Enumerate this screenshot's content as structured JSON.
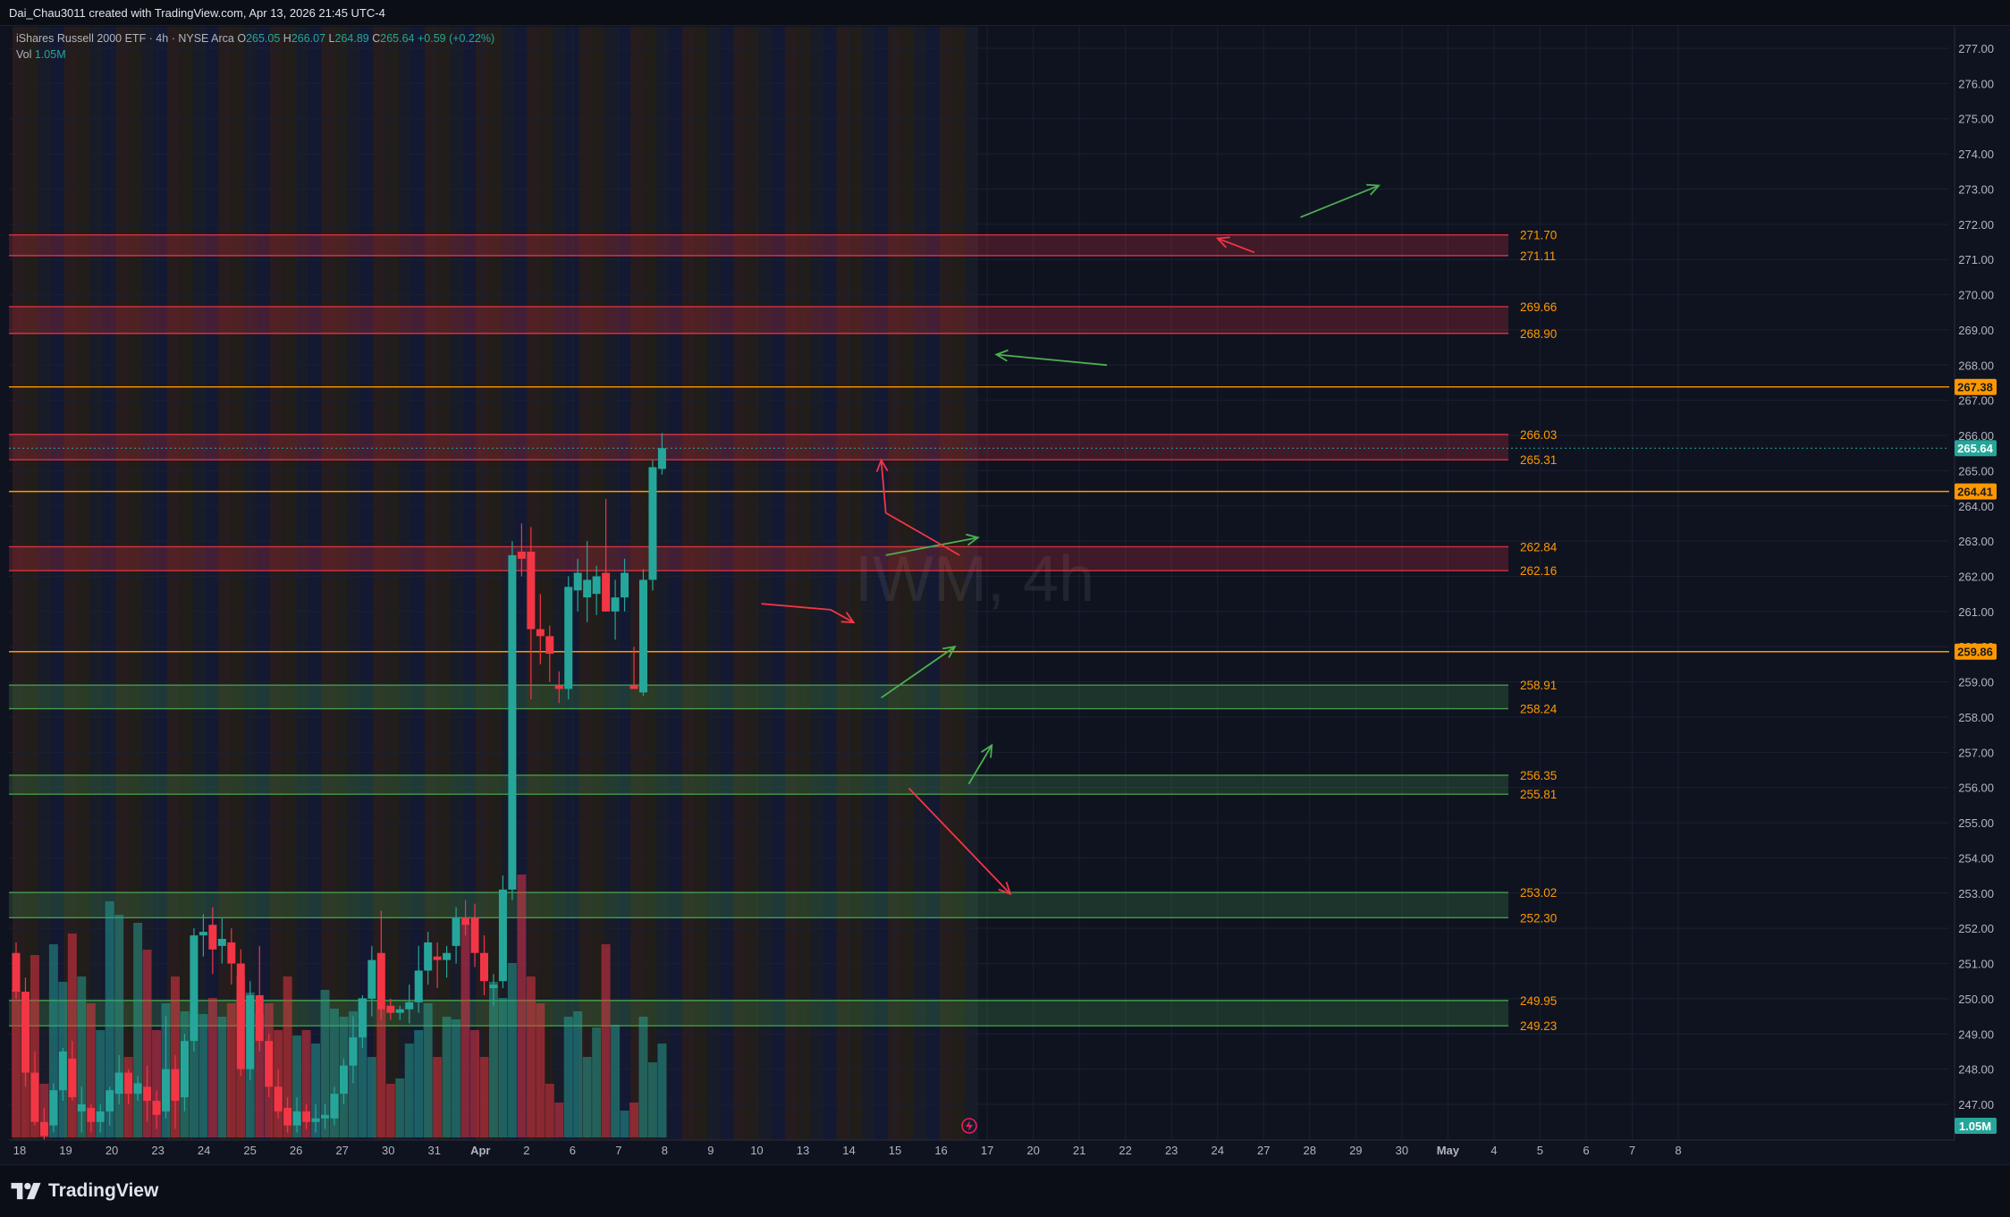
{
  "header": {
    "author_line": "Dai_Chau3011 created with TradingView.com, Apr 13, 2026 21:45 UTC-4"
  },
  "legend": {
    "instrument": "iShares Russell 2000 ETF · 4h · NYSE Arca",
    "o_label": "O",
    "o_value": "265.05",
    "h_label": "H",
    "h_value": "266.07",
    "l_label": "L",
    "l_value": "264.89",
    "c_label": "C",
    "c_value": "265.64",
    "change": "+0.59 (+0.22%)",
    "vol_label": "Vol",
    "vol_value": "1.05M"
  },
  "watermark": "IWM, 4h",
  "brand": {
    "name": "TradingView"
  },
  "colors": {
    "up": "#26a69a",
    "down": "#f23645",
    "resistance": "#f23645",
    "support": "#4caf50",
    "level": "#ff9800",
    "last_price": "#26a69a"
  },
  "chart_data": {
    "type": "candlestick",
    "symbol": "IWM",
    "timeframe": "4h",
    "ylim": [
      246.3,
      277.7
    ],
    "y_ticks": [
      "277.00",
      "276.00",
      "275.00",
      "274.00",
      "273.00",
      "272.00",
      "271.00",
      "270.00",
      "269.00",
      "268.00",
      "267.00",
      "266.00",
      "265.00",
      "264.00",
      "263.00",
      "262.00",
      "261.00",
      "260.00",
      "259.00",
      "258.00",
      "257.00",
      "256.00",
      "255.00",
      "254.00",
      "253.00",
      "252.00",
      "251.00",
      "250.00",
      "249.00",
      "248.00",
      "247.00"
    ],
    "x_ticks": [
      "18",
      "19",
      "20",
      "23",
      "24",
      "25",
      "26",
      "27",
      "30",
      "31",
      "Apr",
      "2",
      "6",
      "7",
      "8",
      "9",
      "10",
      "13",
      "14",
      "15",
      "16",
      "17",
      "20",
      "21",
      "22",
      "23",
      "24",
      "27",
      "28",
      "29",
      "30",
      "May",
      "4",
      "5",
      "6",
      "7",
      "8"
    ],
    "last_price": "265.64",
    "last_volume": "1.05M",
    "resistance_zones": [
      {
        "top": "271.70",
        "bottom": "271.11"
      },
      {
        "top": "269.66",
        "bottom": "268.90"
      },
      {
        "top": "266.03",
        "bottom": "265.31"
      },
      {
        "top": "262.84",
        "bottom": "262.16"
      }
    ],
    "support_zones": [
      {
        "top": "258.91",
        "bottom": "258.24"
      },
      {
        "top": "256.35",
        "bottom": "255.81"
      },
      {
        "top": "253.02",
        "bottom": "252.30"
      },
      {
        "top": "249.95",
        "bottom": "249.23"
      }
    ],
    "levels": [
      "267.38",
      "264.41",
      "259.86"
    ],
    "candles": [
      {
        "o": 251.3,
        "h": 251.6,
        "l": 250.0,
        "c": 250.2,
        "v": 0.55
      },
      {
        "o": 250.2,
        "h": 250.6,
        "l": 247.5,
        "c": 247.9,
        "v": 0.5
      },
      {
        "o": 247.9,
        "h": 248.5,
        "l": 246.4,
        "c": 246.5,
        "v": 0.68
      },
      {
        "o": 246.5,
        "h": 246.9,
        "l": 246.0,
        "c": 246.1,
        "v": 0.2
      },
      {
        "o": 246.4,
        "h": 247.6,
        "l": 246.2,
        "c": 247.4,
        "v": 0.72
      },
      {
        "o": 247.4,
        "h": 248.6,
        "l": 247.1,
        "c": 248.5,
        "v": 0.58
      },
      {
        "o": 248.3,
        "h": 248.8,
        "l": 247.1,
        "c": 247.2,
        "v": 0.76
      },
      {
        "o": 246.8,
        "h": 247.5,
        "l": 246.2,
        "c": 247.0,
        "v": 0.6
      },
      {
        "o": 246.9,
        "h": 247.0,
        "l": 246.2,
        "c": 246.5,
        "v": 0.5
      },
      {
        "o": 246.5,
        "h": 247.0,
        "l": 246.2,
        "c": 246.8,
        "v": 0.4
      },
      {
        "o": 246.8,
        "h": 247.5,
        "l": 246.4,
        "c": 247.4,
        "v": 0.88
      },
      {
        "o": 247.3,
        "h": 248.4,
        "l": 247.0,
        "c": 247.9,
        "v": 0.83
      },
      {
        "o": 247.9,
        "h": 248.0,
        "l": 247.0,
        "c": 247.3,
        "v": 0.3
      },
      {
        "o": 247.3,
        "h": 247.8,
        "l": 247.1,
        "c": 247.6,
        "v": 0.8
      },
      {
        "o": 247.5,
        "h": 248.1,
        "l": 246.5,
        "c": 247.1,
        "v": 0.7
      },
      {
        "o": 247.1,
        "h": 247.4,
        "l": 246.3,
        "c": 246.7,
        "v": 0.4
      },
      {
        "o": 246.8,
        "h": 249.5,
        "l": 246.6,
        "c": 248.0,
        "v": 0.5
      },
      {
        "o": 248.0,
        "h": 248.4,
        "l": 246.3,
        "c": 247.1,
        "v": 0.6
      },
      {
        "o": 247.2,
        "h": 249.0,
        "l": 246.8,
        "c": 248.8,
        "v": 0.47
      },
      {
        "o": 248.8,
        "h": 252.0,
        "l": 248.5,
        "c": 251.8,
        "v": 0.46
      },
      {
        "o": 251.8,
        "h": 252.4,
        "l": 251.2,
        "c": 251.9,
        "v": 0.46
      },
      {
        "o": 252.1,
        "h": 252.6,
        "l": 250.7,
        "c": 251.4,
        "v": 0.52
      },
      {
        "o": 251.5,
        "h": 252.3,
        "l": 251.0,
        "c": 251.7,
        "v": 0.45
      },
      {
        "o": 251.6,
        "h": 252.0,
        "l": 250.4,
        "c": 251.0,
        "v": 0.5
      },
      {
        "o": 251.0,
        "h": 251.4,
        "l": 247.8,
        "c": 248.0,
        "v": 0.6
      },
      {
        "o": 248.0,
        "h": 250.5,
        "l": 247.7,
        "c": 250.1,
        "v": 0.54
      },
      {
        "o": 250.1,
        "h": 251.5,
        "l": 248.5,
        "c": 248.8,
        "v": 0.46
      },
      {
        "o": 248.8,
        "h": 249.0,
        "l": 247.2,
        "c": 247.5,
        "v": 0.5
      },
      {
        "o": 247.5,
        "h": 248.0,
        "l": 246.6,
        "c": 246.8,
        "v": 0.4
      },
      {
        "o": 246.9,
        "h": 247.2,
        "l": 246.2,
        "c": 246.4,
        "v": 0.6
      },
      {
        "o": 246.4,
        "h": 247.2,
        "l": 246.2,
        "c": 246.8,
        "v": 0.38
      },
      {
        "o": 246.8,
        "h": 247.0,
        "l": 246.3,
        "c": 246.5,
        "v": 0.4
      },
      {
        "o": 246.5,
        "h": 247.0,
        "l": 246.2,
        "c": 246.6,
        "v": 0.35
      },
      {
        "o": 246.6,
        "h": 247.0,
        "l": 246.3,
        "c": 246.7,
        "v": 0.55
      },
      {
        "o": 246.6,
        "h": 247.5,
        "l": 246.4,
        "c": 247.3,
        "v": 0.48
      },
      {
        "o": 247.3,
        "h": 248.3,
        "l": 247.0,
        "c": 248.1,
        "v": 0.45
      },
      {
        "o": 248.1,
        "h": 249.5,
        "l": 247.6,
        "c": 248.9,
        "v": 0.47
      },
      {
        "o": 248.9,
        "h": 250.1,
        "l": 248.6,
        "c": 250.0,
        "v": 0.52
      },
      {
        "o": 250.0,
        "h": 251.5,
        "l": 249.5,
        "c": 251.1,
        "v": 0.3
      },
      {
        "o": 251.3,
        "h": 252.5,
        "l": 249.4,
        "c": 249.7,
        "v": 0.48
      },
      {
        "o": 249.8,
        "h": 250.0,
        "l": 249.4,
        "c": 249.6,
        "v": 0.2
      },
      {
        "o": 249.6,
        "h": 249.8,
        "l": 249.4,
        "c": 249.7,
        "v": 0.22
      },
      {
        "o": 249.7,
        "h": 250.4,
        "l": 249.3,
        "c": 249.9,
        "v": 0.35
      },
      {
        "o": 249.9,
        "h": 251.5,
        "l": 249.6,
        "c": 250.8,
        "v": 0.4
      },
      {
        "o": 250.8,
        "h": 251.9,
        "l": 250.4,
        "c": 251.6,
        "v": 0.5
      },
      {
        "o": 251.2,
        "h": 251.6,
        "l": 250.3,
        "c": 251.1,
        "v": 0.3
      },
      {
        "o": 251.1,
        "h": 251.5,
        "l": 250.6,
        "c": 251.3,
        "v": 0.45
      },
      {
        "o": 251.5,
        "h": 252.6,
        "l": 251.0,
        "c": 252.3,
        "v": 0.44
      },
      {
        "o": 252.3,
        "h": 252.8,
        "l": 251.8,
        "c": 252.1,
        "v": 0.8
      },
      {
        "o": 252.3,
        "h": 252.7,
        "l": 250.9,
        "c": 251.3,
        "v": 0.4
      },
      {
        "o": 251.3,
        "h": 251.8,
        "l": 250.1,
        "c": 250.5,
        "v": 0.3
      },
      {
        "o": 250.3,
        "h": 250.7,
        "l": 249.8,
        "c": 250.4,
        "v": 0.58
      },
      {
        "o": 250.5,
        "h": 253.5,
        "l": 250.3,
        "c": 253.1,
        "v": 0.52
      },
      {
        "o": 253.1,
        "h": 263.0,
        "l": 252.8,
        "c": 262.6,
        "v": 0.65
      },
      {
        "o": 262.7,
        "h": 263.5,
        "l": 262.0,
        "c": 262.5,
        "v": 0.98
      },
      {
        "o": 262.7,
        "h": 263.4,
        "l": 258.5,
        "c": 260.5,
        "v": 0.6
      },
      {
        "o": 260.5,
        "h": 261.5,
        "l": 259.5,
        "c": 260.3,
        "v": 0.5
      },
      {
        "o": 260.3,
        "h": 260.6,
        "l": 259.0,
        "c": 259.8,
        "v": 0.2
      },
      {
        "o": 258.9,
        "h": 259.3,
        "l": 258.4,
        "c": 258.8,
        "v": 0.13
      },
      {
        "o": 258.8,
        "h": 262.0,
        "l": 258.5,
        "c": 261.7,
        "v": 0.45
      },
      {
        "o": 261.6,
        "h": 262.5,
        "l": 261.0,
        "c": 262.1,
        "v": 0.47
      },
      {
        "o": 261.4,
        "h": 263.0,
        "l": 260.7,
        "c": 261.9,
        "v": 0.3
      },
      {
        "o": 261.5,
        "h": 262.3,
        "l": 260.9,
        "c": 262.0,
        "v": 0.41
      },
      {
        "o": 262.1,
        "h": 264.2,
        "l": 261.0,
        "c": 261.0,
        "v": 0.72
      },
      {
        "o": 261.0,
        "h": 261.9,
        "l": 260.2,
        "c": 261.4,
        "v": 0.42
      },
      {
        "o": 261.4,
        "h": 262.5,
        "l": 261.0,
        "c": 262.1,
        "v": 0.1
      },
      {
        "o": 258.9,
        "h": 260.0,
        "l": 258.8,
        "c": 258.8,
        "v": 0.13
      },
      {
        "o": 258.7,
        "h": 262.2,
        "l": 258.6,
        "c": 261.9,
        "v": 0.45
      },
      {
        "o": 261.9,
        "h": 265.3,
        "l": 261.6,
        "c": 265.1,
        "v": 0.28
      },
      {
        "o": 265.05,
        "h": 266.07,
        "l": 264.89,
        "c": 265.64,
        "v": 0.35
      }
    ],
    "projection_arrows": [
      {
        "color": "green",
        "points": [
          [
            260.9,
            258.55
          ],
          [
            262.5,
            260.0
          ]
        ]
      },
      {
        "color": "red",
        "points": [
          [
            261.5,
            255.98
          ],
          [
            263.7,
            252.98
          ]
        ]
      },
      {
        "color": "green",
        "points": [
          [
            262.8,
            256.1
          ],
          [
            263.3,
            257.2
          ]
        ]
      },
      {
        "color": "red",
        "points": [
          [
            258.3,
            261.22
          ],
          [
            259.8,
            261.05
          ],
          [
            260.3,
            260.69
          ]
        ]
      },
      {
        "color": "green",
        "points": [
          [
            261.0,
            262.6
          ],
          [
            263.0,
            263.1
          ]
        ]
      },
      {
        "color": "red",
        "points": [
          [
            262.6,
            262.6
          ],
          [
            261.0,
            263.8
          ],
          [
            260.9,
            265.3
          ]
        ]
      },
      {
        "color": "green",
        "points": [
          [
            265.8,
            268.0
          ],
          [
            263.4,
            268.3
          ]
        ]
      },
      {
        "color": "red",
        "points": [
          [
            269.0,
            271.2
          ],
          [
            268.2,
            271.6
          ]
        ]
      },
      {
        "color": "green",
        "points": [
          [
            270.0,
            272.2
          ],
          [
            271.7,
            273.1
          ]
        ]
      }
    ]
  }
}
